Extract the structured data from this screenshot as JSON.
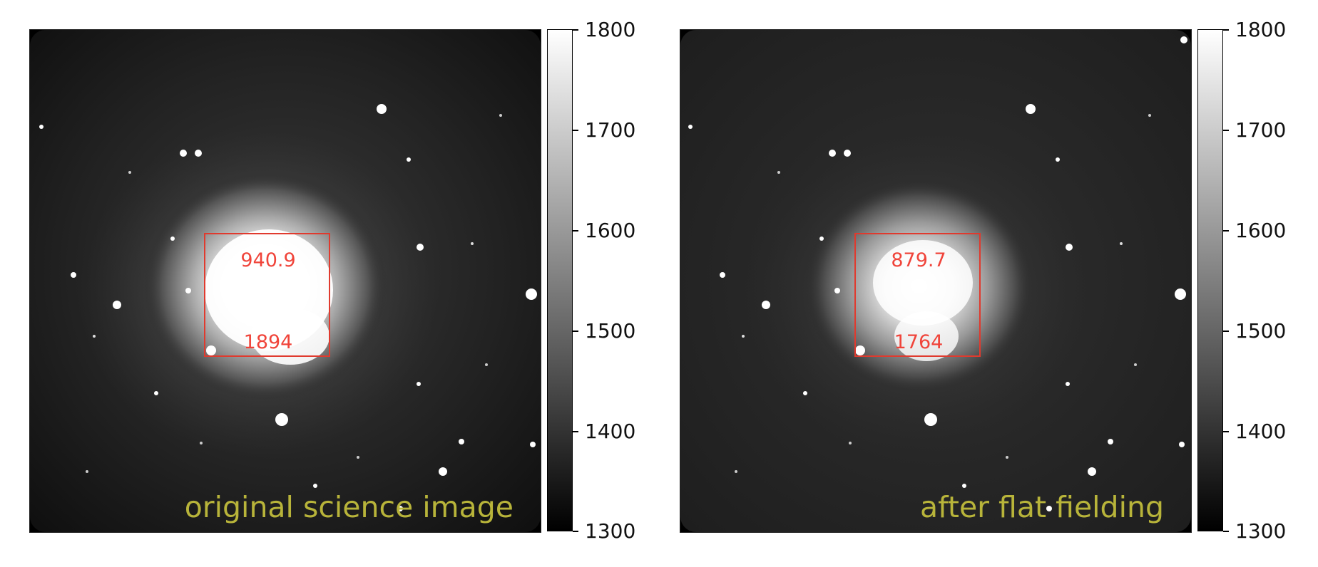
{
  "figure": {
    "panels": [
      {
        "caption": "original science image",
        "roi_values": {
          "top": "940.9",
          "bottom": "1894"
        },
        "image_brightness": "bright"
      },
      {
        "caption": "after flat fielding",
        "roi_values": {
          "top": "879.7",
          "bottom": "1764"
        },
        "image_brightness": "normal"
      }
    ],
    "colorbar": {
      "min": 1300,
      "max": 1800,
      "ticks": [
        "1800",
        "1700",
        "1600",
        "1500",
        "1400",
        "1300"
      ],
      "colormap": "gray"
    },
    "colors": {
      "roi_box": "#e03a2e",
      "roi_text": "#f0443a",
      "caption_text": "#b8b43a"
    }
  }
}
